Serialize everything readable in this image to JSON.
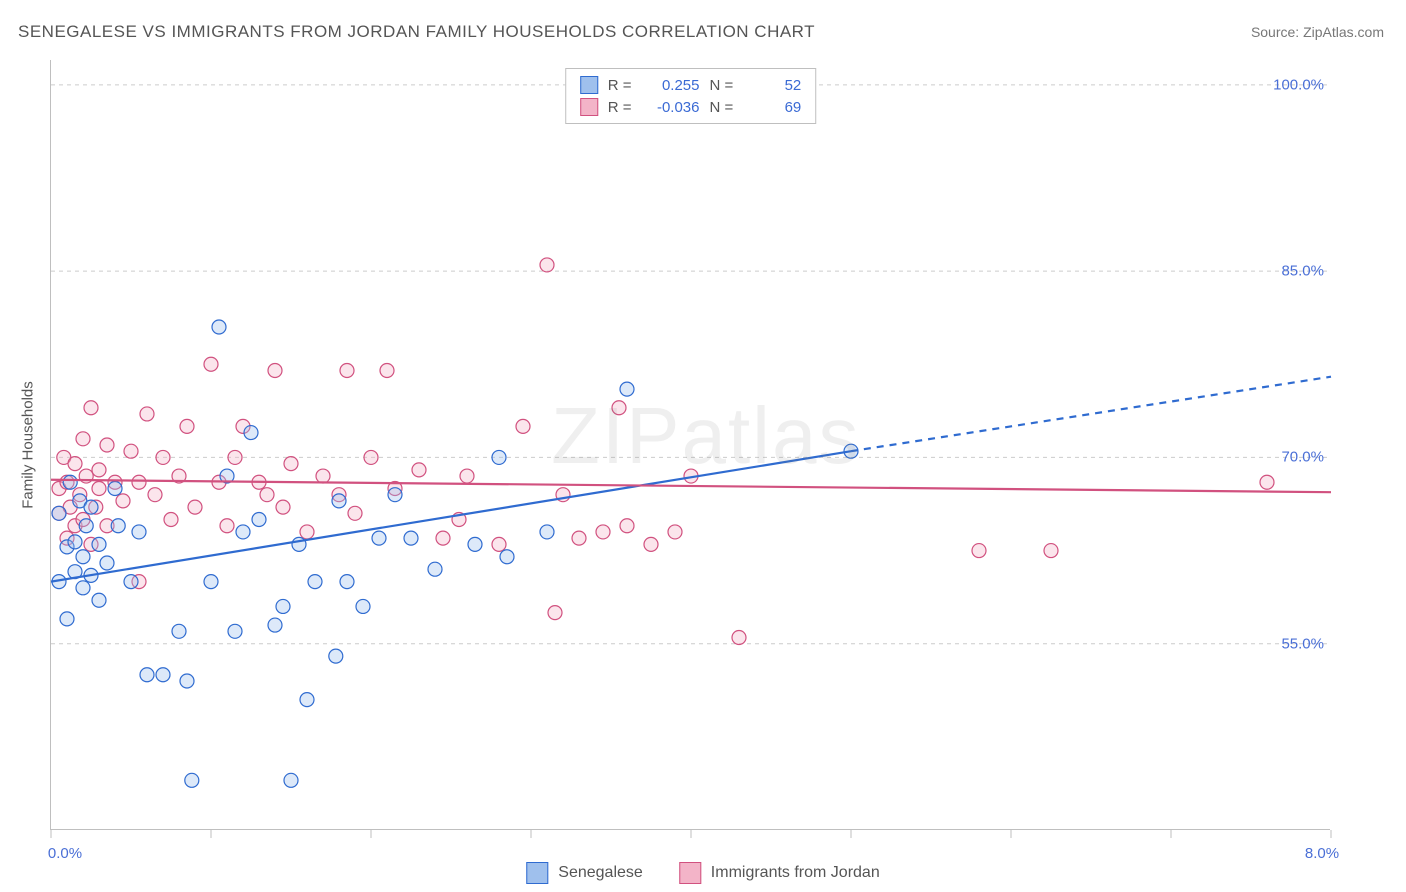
{
  "title": "SENEGALESE VS IMMIGRANTS FROM JORDAN FAMILY HOUSEHOLDS CORRELATION CHART",
  "source": "Source: ZipAtlas.com",
  "y_axis_label": "Family Households",
  "watermark": "ZIPatlas",
  "chart": {
    "type": "scatter",
    "xlim": [
      0.0,
      8.0
    ],
    "ylim": [
      40.0,
      102.0
    ],
    "yticks": [
      {
        "v": 55.0,
        "label": "55.0%"
      },
      {
        "v": 70.0,
        "label": "70.0%"
      },
      {
        "v": 85.0,
        "label": "85.0%"
      },
      {
        "v": 100.0,
        "label": "100.0%"
      }
    ],
    "xtick_positions": [
      0,
      1,
      2,
      3,
      4,
      5,
      6,
      7,
      8
    ],
    "xtick_left_label": "0.0%",
    "xtick_right_label": "8.0%",
    "grid_color": "#cccccc",
    "grid_dash": "4 4",
    "axis_color": "#bfbfbf",
    "background": "#ffffff",
    "marker_radius": 7,
    "marker_stroke_width": 1.2,
    "marker_fill_opacity": 0.35,
    "line_width": 2.2,
    "dash_pattern": "7 6"
  },
  "series": [
    {
      "name": "Senegalese",
      "color_stroke": "#2f6bd0",
      "color_fill": "#9fc0ed",
      "R": "0.255",
      "N": "52",
      "reg_solid": {
        "x1": 0.0,
        "y1": 60.0,
        "x2": 5.0,
        "y2": 70.5
      },
      "reg_dash": {
        "x1": 5.0,
        "y1": 70.5,
        "x2": 8.0,
        "y2": 76.5
      },
      "points": [
        [
          0.05,
          60.0
        ],
        [
          0.05,
          65.5
        ],
        [
          0.1,
          57.0
        ],
        [
          0.1,
          62.8
        ],
        [
          0.12,
          68.0
        ],
        [
          0.15,
          60.8
        ],
        [
          0.15,
          63.2
        ],
        [
          0.18,
          66.5
        ],
        [
          0.2,
          59.5
        ],
        [
          0.2,
          62.0
        ],
        [
          0.22,
          64.5
        ],
        [
          0.25,
          60.5
        ],
        [
          0.25,
          66.0
        ],
        [
          0.3,
          58.5
        ],
        [
          0.3,
          63.0
        ],
        [
          0.35,
          61.5
        ],
        [
          0.4,
          67.5
        ],
        [
          0.42,
          64.5
        ],
        [
          0.5,
          60.0
        ],
        [
          0.55,
          64.0
        ],
        [
          0.6,
          52.5
        ],
        [
          0.7,
          52.5
        ],
        [
          0.8,
          56.0
        ],
        [
          0.85,
          52.0
        ],
        [
          0.88,
          44.0
        ],
        [
          1.0,
          60.0
        ],
        [
          1.05,
          80.5
        ],
        [
          1.1,
          68.5
        ],
        [
          1.15,
          56.0
        ],
        [
          1.2,
          64.0
        ],
        [
          1.25,
          72.0
        ],
        [
          1.3,
          65.0
        ],
        [
          1.4,
          56.5
        ],
        [
          1.45,
          58.0
        ],
        [
          1.5,
          44.0
        ],
        [
          1.55,
          63.0
        ],
        [
          1.6,
          50.5
        ],
        [
          1.65,
          60.0
        ],
        [
          1.78,
          54.0
        ],
        [
          1.8,
          66.5
        ],
        [
          1.85,
          60.0
        ],
        [
          1.95,
          58.0
        ],
        [
          2.05,
          63.5
        ],
        [
          2.15,
          67.0
        ],
        [
          2.25,
          63.5
        ],
        [
          2.4,
          61.0
        ],
        [
          2.65,
          63.0
        ],
        [
          2.8,
          70.0
        ],
        [
          2.85,
          62.0
        ],
        [
          3.1,
          64.0
        ],
        [
          3.6,
          75.5
        ],
        [
          5.0,
          70.5
        ]
      ]
    },
    {
      "name": "Immigrants from Jordan",
      "color_stroke": "#d1517f",
      "color_fill": "#f3b4c8",
      "R": "-0.036",
      "N": "69",
      "reg_solid": {
        "x1": 0.0,
        "y1": 68.2,
        "x2": 8.0,
        "y2": 67.2
      },
      "reg_dash": null,
      "points": [
        [
          0.05,
          65.5
        ],
        [
          0.05,
          67.5
        ],
        [
          0.08,
          70.0
        ],
        [
          0.1,
          63.5
        ],
        [
          0.1,
          68.0
        ],
        [
          0.12,
          66.0
        ],
        [
          0.15,
          64.5
        ],
        [
          0.15,
          69.5
        ],
        [
          0.18,
          67.0
        ],
        [
          0.2,
          65.0
        ],
        [
          0.2,
          71.5
        ],
        [
          0.22,
          68.5
        ],
        [
          0.25,
          63.0
        ],
        [
          0.25,
          74.0
        ],
        [
          0.28,
          66.0
        ],
        [
          0.3,
          69.0
        ],
        [
          0.3,
          67.5
        ],
        [
          0.35,
          64.5
        ],
        [
          0.35,
          71.0
        ],
        [
          0.4,
          68.0
        ],
        [
          0.45,
          66.5
        ],
        [
          0.5,
          70.5
        ],
        [
          0.55,
          60.0
        ],
        [
          0.55,
          68.0
        ],
        [
          0.6,
          73.5
        ],
        [
          0.65,
          67.0
        ],
        [
          0.7,
          70.0
        ],
        [
          0.75,
          65.0
        ],
        [
          0.8,
          68.5
        ],
        [
          0.85,
          72.5
        ],
        [
          0.9,
          66.0
        ],
        [
          1.0,
          77.5
        ],
        [
          1.05,
          68.0
        ],
        [
          1.1,
          64.5
        ],
        [
          1.15,
          70.0
        ],
        [
          1.2,
          72.5
        ],
        [
          1.3,
          68.0
        ],
        [
          1.35,
          67.0
        ],
        [
          1.4,
          77.0
        ],
        [
          1.45,
          66.0
        ],
        [
          1.5,
          69.5
        ],
        [
          1.6,
          64.0
        ],
        [
          1.7,
          68.5
        ],
        [
          1.8,
          67.0
        ],
        [
          1.85,
          77.0
        ],
        [
          1.9,
          65.5
        ],
        [
          2.0,
          70.0
        ],
        [
          2.1,
          77.0
        ],
        [
          2.15,
          67.5
        ],
        [
          2.3,
          69.0
        ],
        [
          2.45,
          63.5
        ],
        [
          2.55,
          65.0
        ],
        [
          2.6,
          68.5
        ],
        [
          2.8,
          63.0
        ],
        [
          2.95,
          72.5
        ],
        [
          3.1,
          85.5
        ],
        [
          3.15,
          57.5
        ],
        [
          3.3,
          63.5
        ],
        [
          3.45,
          64.0
        ],
        [
          3.55,
          74.0
        ],
        [
          3.6,
          64.5
        ],
        [
          3.75,
          63.0
        ],
        [
          3.9,
          64.0
        ],
        [
          4.0,
          68.5
        ],
        [
          4.3,
          55.5
        ],
        [
          5.8,
          62.5
        ],
        [
          6.25,
          62.5
        ],
        [
          7.6,
          68.0
        ],
        [
          3.2,
          67.0
        ]
      ]
    }
  ],
  "corr_labels": {
    "R": "R =",
    "N": "N ="
  },
  "bottom_legend": [
    {
      "swatch_fill": "#9fc0ed",
      "swatch_stroke": "#2f6bd0",
      "label": "Senegalese"
    },
    {
      "swatch_fill": "#f3b4c8",
      "swatch_stroke": "#d1517f",
      "label": "Immigrants from Jordan"
    }
  ]
}
